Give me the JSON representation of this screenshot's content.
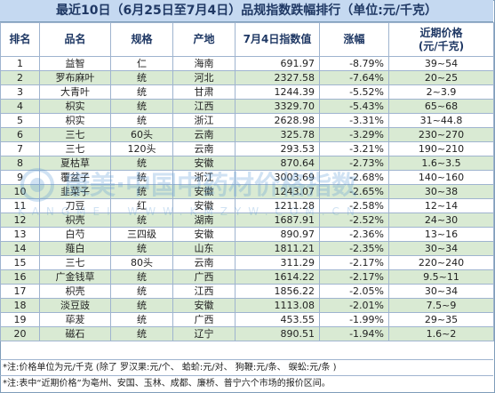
{
  "title": "最近10日（6月25日至7月4日）品规指数跌幅排行（单位:元/千克）",
  "headers": {
    "rank": "排名",
    "name": "品名",
    "spec": "规格",
    "origin": "产地",
    "index": "7月4日指数值",
    "change": "涨幅",
    "price_line1": "近期价格",
    "price_line2": "(元/千克)"
  },
  "rows": [
    {
      "rank": "1",
      "name": "益智",
      "spec": "仁",
      "origin": "海南",
      "index": "691.97",
      "change": "-8.79%",
      "price": "39~54"
    },
    {
      "rank": "2",
      "name": "罗布麻叶",
      "spec": "统",
      "origin": "河北",
      "index": "2327.58",
      "change": "-7.64%",
      "price": "20~25"
    },
    {
      "rank": "3",
      "name": "大青叶",
      "spec": "统",
      "origin": "甘肃",
      "index": "1244.39",
      "change": "-5.52%",
      "price": "2~3.9"
    },
    {
      "rank": "4",
      "name": "枳实",
      "spec": "统",
      "origin": "江西",
      "index": "3329.70",
      "change": "-5.43%",
      "price": "65~68"
    },
    {
      "rank": "5",
      "name": "枳实",
      "spec": "统",
      "origin": "浙江",
      "index": "2628.98",
      "change": "-3.31%",
      "price": "31~44.8"
    },
    {
      "rank": "6",
      "name": "三七",
      "spec": "60头",
      "origin": "云南",
      "index": "325.78",
      "change": "-3.29%",
      "price": "230~270"
    },
    {
      "rank": "7",
      "name": "三七",
      "spec": "120头",
      "origin": "云南",
      "index": "293.53",
      "change": "-3.21%",
      "price": "190~210"
    },
    {
      "rank": "8",
      "name": "夏枯草",
      "spec": "统",
      "origin": "安徽",
      "index": "870.64",
      "change": "-2.73%",
      "price": "1.6~3.5"
    },
    {
      "rank": "9",
      "name": "覆盆子",
      "spec": "统",
      "origin": "浙江",
      "index": "3003.69",
      "change": "-2.68%",
      "price": "140~160"
    },
    {
      "rank": "10",
      "name": "韭菜子",
      "spec": "统",
      "origin": "安徽",
      "index": "1243.07",
      "change": "-2.65%",
      "price": "30~38"
    },
    {
      "rank": "11",
      "name": "刀豆",
      "spec": "红",
      "origin": "安徽",
      "index": "1211.28",
      "change": "-2.58%",
      "price": "12~14"
    },
    {
      "rank": "12",
      "name": "枳壳",
      "spec": "统",
      "origin": "湖南",
      "index": "1687.91",
      "change": "-2.52%",
      "price": "24~30"
    },
    {
      "rank": "13",
      "name": "白芍",
      "spec": "三四级",
      "origin": "安徽",
      "index": "890.97",
      "change": "-2.36%",
      "price": "13~16"
    },
    {
      "rank": "14",
      "name": "薤白",
      "spec": "统",
      "origin": "山东",
      "index": "1811.21",
      "change": "-2.35%",
      "price": "30~34"
    },
    {
      "rank": "15",
      "name": "三七",
      "spec": "80头",
      "origin": "云南",
      "index": "311.29",
      "change": "-2.17%",
      "price": "220~240"
    },
    {
      "rank": "16",
      "name": "广金钱草",
      "spec": "统",
      "origin": "广西",
      "index": "1614.22",
      "change": "-2.17%",
      "price": "9.5~11"
    },
    {
      "rank": "17",
      "name": "枳壳",
      "spec": "统",
      "origin": "江西",
      "index": "1856.22",
      "change": "-2.05%",
      "price": "30~34"
    },
    {
      "rank": "18",
      "name": "淡豆豉",
      "spec": "统",
      "origin": "安徽",
      "index": "1113.08",
      "change": "-2.01%",
      "price": "7.5~9"
    },
    {
      "rank": "19",
      "name": "荜茇",
      "spec": "统",
      "origin": "广西",
      "index": "453.55",
      "change": "-1.99%",
      "price": "29~35"
    },
    {
      "rank": "20",
      "name": "磁石",
      "spec": "统",
      "origin": "辽宁",
      "index": "890.51",
      "change": "-1.94%",
      "price": "1.6~2"
    }
  ],
  "notes": {
    "line1": "*注:价格单位为元/千克 (除了 罗汉果:元/个、 蛤蚧:元/对、 狗鞭:元/条、 蜈蚣:元/条 )",
    "line2": "*注:表中“近期价格”为亳州、安国、玉林、成都、廉桥、普宁六个市场的报价区间。"
  },
  "watermark": {
    "main": "康美·中国中药材价格指数",
    "sub": "KANGMEI WWW.KMZYW.COM.CN"
  },
  "colors": {
    "title_bg": "#c5d9f1",
    "header_text": "#1f3864",
    "row_alt": "#d9ead3",
    "border": "#9fb4cf"
  }
}
